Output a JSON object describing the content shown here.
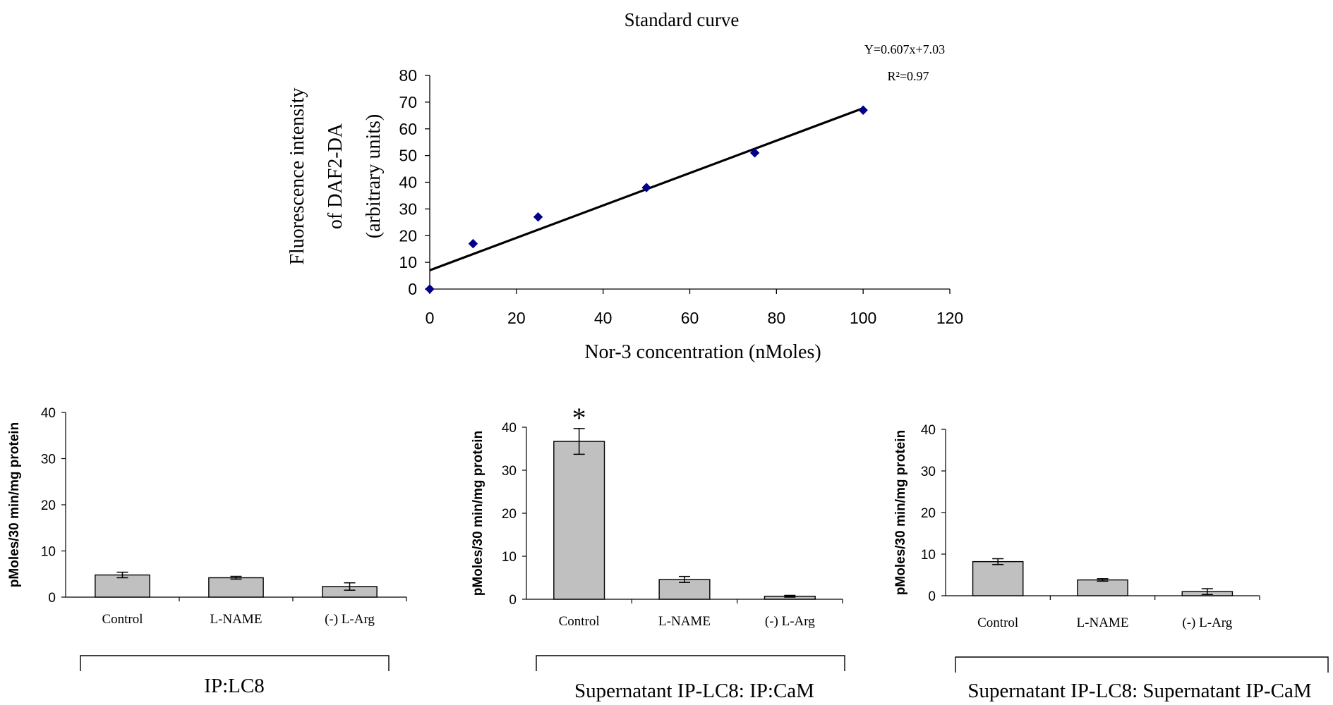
{
  "colors": {
    "point": "#00008B",
    "fit_line": "#000000",
    "bar_fill": "#C0C0C0",
    "axis": "#000000"
  },
  "chart_data": [
    {
      "type": "scatter",
      "title": "Standard curve",
      "xlabel": "Nor-3 concentration (nMoles)",
      "ylabel_lines": [
        "Fluorescence intensity",
        "of  DAF2-DA",
        "(arbitrary units)"
      ],
      "equation": "Y=0.607x+7.03",
      "r2": "R²=0.97",
      "xlim": [
        0,
        120
      ],
      "ylim": [
        0,
        80
      ],
      "x_ticks": [
        0,
        20,
        40,
        60,
        80,
        100,
        120
      ],
      "y_ticks": [
        0,
        10,
        20,
        30,
        40,
        50,
        60,
        70,
        80
      ],
      "points": [
        {
          "x": 0,
          "y": 0
        },
        {
          "x": 10,
          "y": 17
        },
        {
          "x": 25,
          "y": 27
        },
        {
          "x": 50,
          "y": 38
        },
        {
          "x": 75,
          "y": 51
        },
        {
          "x": 100,
          "y": 67
        }
      ],
      "fit": {
        "slope": 0.607,
        "intercept": 7.03
      },
      "marker": "diamond",
      "grid": false
    },
    {
      "type": "bar",
      "ylabel": "pMoles/30 min/mg protein",
      "group_label": "IP:LC8",
      "categories": [
        "Control",
        "L-NAME",
        "(-) L-Arg"
      ],
      "values": [
        4.8,
        4.2,
        2.3
      ],
      "errors": [
        0.6,
        0.3,
        0.8
      ],
      "ylim": [
        0,
        40
      ],
      "y_ticks": [
        0,
        10,
        20,
        30,
        40
      ],
      "annotations": []
    },
    {
      "type": "bar",
      "ylabel": "pMoles/30 min/mg protein",
      "group_label": "Supernatant IP-LC8: IP:CaM",
      "categories": [
        "Control",
        "L-NAME",
        "(-) L-Arg"
      ],
      "values": [
        36.7,
        4.6,
        0.7
      ],
      "errors": [
        3.0,
        0.7,
        0.2
      ],
      "ylim": [
        0,
        40
      ],
      "y_ticks": [
        0,
        10,
        20,
        30,
        40
      ],
      "annotations": [
        {
          "category": "Control",
          "text": "*"
        }
      ]
    },
    {
      "type": "bar",
      "ylabel": "pMoles/30 min/mg protein",
      "group_label": "Supernatant IP-LC8: Supernatant IP-CaM",
      "categories": [
        "Control",
        "L-NAME",
        "(-) L-Arg"
      ],
      "values": [
        8.2,
        3.8,
        1.0
      ],
      "errors": [
        0.7,
        0.3,
        0.7
      ],
      "ylim": [
        0,
        40
      ],
      "y_ticks": [
        0,
        10,
        20,
        30,
        40
      ],
      "annotations": []
    }
  ]
}
